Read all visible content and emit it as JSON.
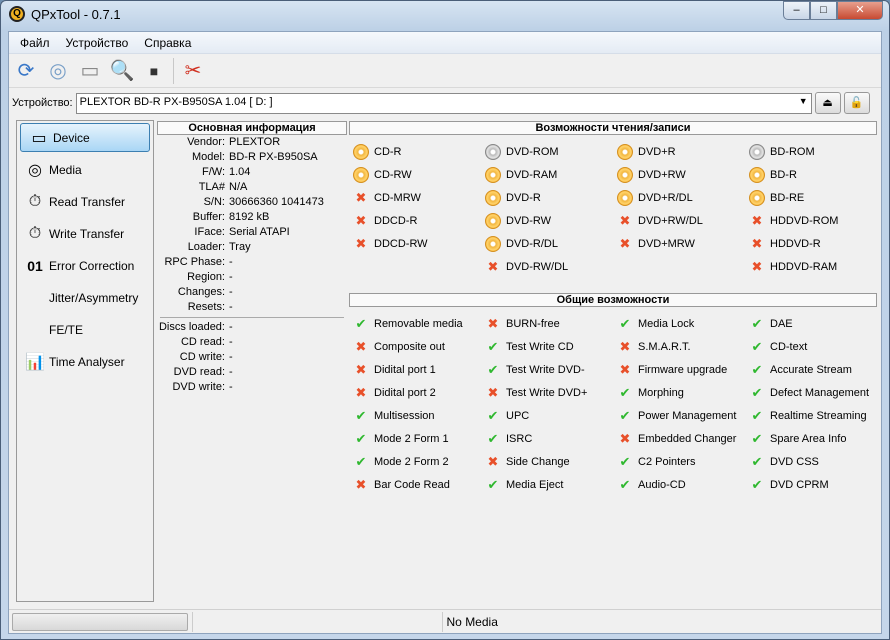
{
  "window": {
    "title": "QPxTool - 0.7.1",
    "min": "‒",
    "max": "□",
    "close": "✕"
  },
  "menu": [
    "Файл",
    "Устройство",
    "Справка"
  ],
  "device": {
    "label": "Устройство:",
    "value": "PLEXTOR  BD-R  PX-B950SA  1.04 [ D: ]"
  },
  "nav": [
    {
      "label": "Device",
      "icon": "drive-icon",
      "glyph": "▭"
    },
    {
      "label": "Media",
      "icon": "disc-icon",
      "glyph": "◎"
    },
    {
      "label": "Read Transfer",
      "icon": "stopwatch-icon",
      "glyph": "⏱"
    },
    {
      "label": "Write Transfer",
      "icon": "stopwatch-fire-icon",
      "glyph": "⏱"
    },
    {
      "label": "Error Correction",
      "icon": "binary-icon",
      "glyph": "01"
    },
    {
      "label": "Jitter/Asymmetry",
      "icon": "",
      "glyph": ""
    },
    {
      "label": "FE/TE",
      "icon": "",
      "glyph": ""
    },
    {
      "label": "Time Analyser",
      "icon": "bar-chart-icon",
      "glyph": "📊"
    }
  ],
  "info": {
    "header": "Основная информация",
    "rows": [
      [
        "Vendor:",
        "PLEXTOR"
      ],
      [
        "Model:",
        "BD-R  PX-B950SA"
      ],
      [
        "F/W:",
        "1.04"
      ],
      [
        "TLA#",
        "N/A"
      ],
      [
        "S/N:",
        "30666360 1041473"
      ],
      [
        "Buffer:",
        "8192 kB"
      ],
      [
        "IFace:",
        "Serial ATAPI"
      ],
      [
        "Loader:",
        "Tray"
      ],
      [
        "RPC Phase:",
        "-"
      ],
      [
        "Region:",
        "-"
      ],
      [
        "Changes:",
        "-"
      ],
      [
        "Resets:",
        "-"
      ]
    ],
    "stats": [
      [
        "Discs loaded:",
        "-"
      ],
      [
        "CD read:",
        "-"
      ],
      [
        "CD write:",
        "-"
      ],
      [
        "DVD read:",
        "-"
      ],
      [
        "DVD write:",
        "-"
      ]
    ]
  },
  "rw": {
    "header": "Возможности чтения/записи",
    "columns": [
      [
        [
          "CD-R",
          "rw"
        ],
        [
          "CD-RW",
          "rw"
        ],
        [
          "CD-MRW",
          "no"
        ],
        [
          "DDCD-R",
          "no"
        ],
        [
          "DDCD-RW",
          "no"
        ]
      ],
      [
        [
          "DVD-ROM",
          "ro"
        ],
        [
          "DVD-RAM",
          "rw"
        ],
        [
          "DVD-R",
          "rw"
        ],
        [
          "DVD-RW",
          "rw"
        ],
        [
          "DVD-R/DL",
          "rw"
        ],
        [
          "DVD-RW/DL",
          "no"
        ]
      ],
      [
        [
          "DVD+R",
          "rw"
        ],
        [
          "DVD+RW",
          "rw"
        ],
        [
          "DVD+R/DL",
          "rw"
        ],
        [
          "DVD+RW/DL",
          "no"
        ],
        [
          "DVD+MRW",
          "no"
        ]
      ],
      [
        [
          "BD-ROM",
          "ro"
        ],
        [
          "BD-R",
          "rw"
        ],
        [
          "BD-RE",
          "rw"
        ],
        [
          "HDDVD-ROM",
          "no"
        ],
        [
          "HDDVD-R",
          "no"
        ],
        [
          "HDDVD-RAM",
          "no"
        ]
      ]
    ]
  },
  "general": {
    "header": "Общие возможности",
    "columns": [
      [
        [
          "Removable media",
          true
        ],
        [
          "Composite out",
          false
        ],
        [
          "Didital port 1",
          false
        ],
        [
          "Didital port 2",
          false
        ],
        [
          "Multisession",
          true
        ],
        [
          "Mode 2 Form 1",
          true
        ],
        [
          "Mode 2 Form 2",
          true
        ],
        [
          "Bar Code Read",
          false
        ]
      ],
      [
        [
          "BURN-free",
          false
        ],
        [
          "Test Write CD",
          true
        ],
        [
          "Test Write DVD-",
          true
        ],
        [
          "Test Write DVD+",
          false
        ],
        [
          "UPC",
          true
        ],
        [
          "ISRC",
          true
        ],
        [
          "Side Change",
          false
        ],
        [
          "Media Eject",
          true
        ]
      ],
      [
        [
          "Media Lock",
          true
        ],
        [
          "S.M.A.R.T.",
          false
        ],
        [
          "Firmware upgrade",
          false
        ],
        [
          "Morphing",
          true
        ],
        [
          "Power Management",
          true
        ],
        [
          "Embedded Changer",
          false
        ],
        [
          "C2 Pointers",
          true
        ],
        [
          "Audio-CD",
          true
        ]
      ],
      [
        [
          "DAE",
          true
        ],
        [
          "CD-text",
          true
        ],
        [
          "Accurate Stream",
          true
        ],
        [
          "Defect Management",
          true
        ],
        [
          "Realtime Streaming",
          true
        ],
        [
          "Spare Area Info",
          true
        ],
        [
          "DVD CSS",
          true
        ],
        [
          "DVD CPRM",
          true
        ]
      ]
    ]
  },
  "status": {
    "media": "No Media"
  }
}
